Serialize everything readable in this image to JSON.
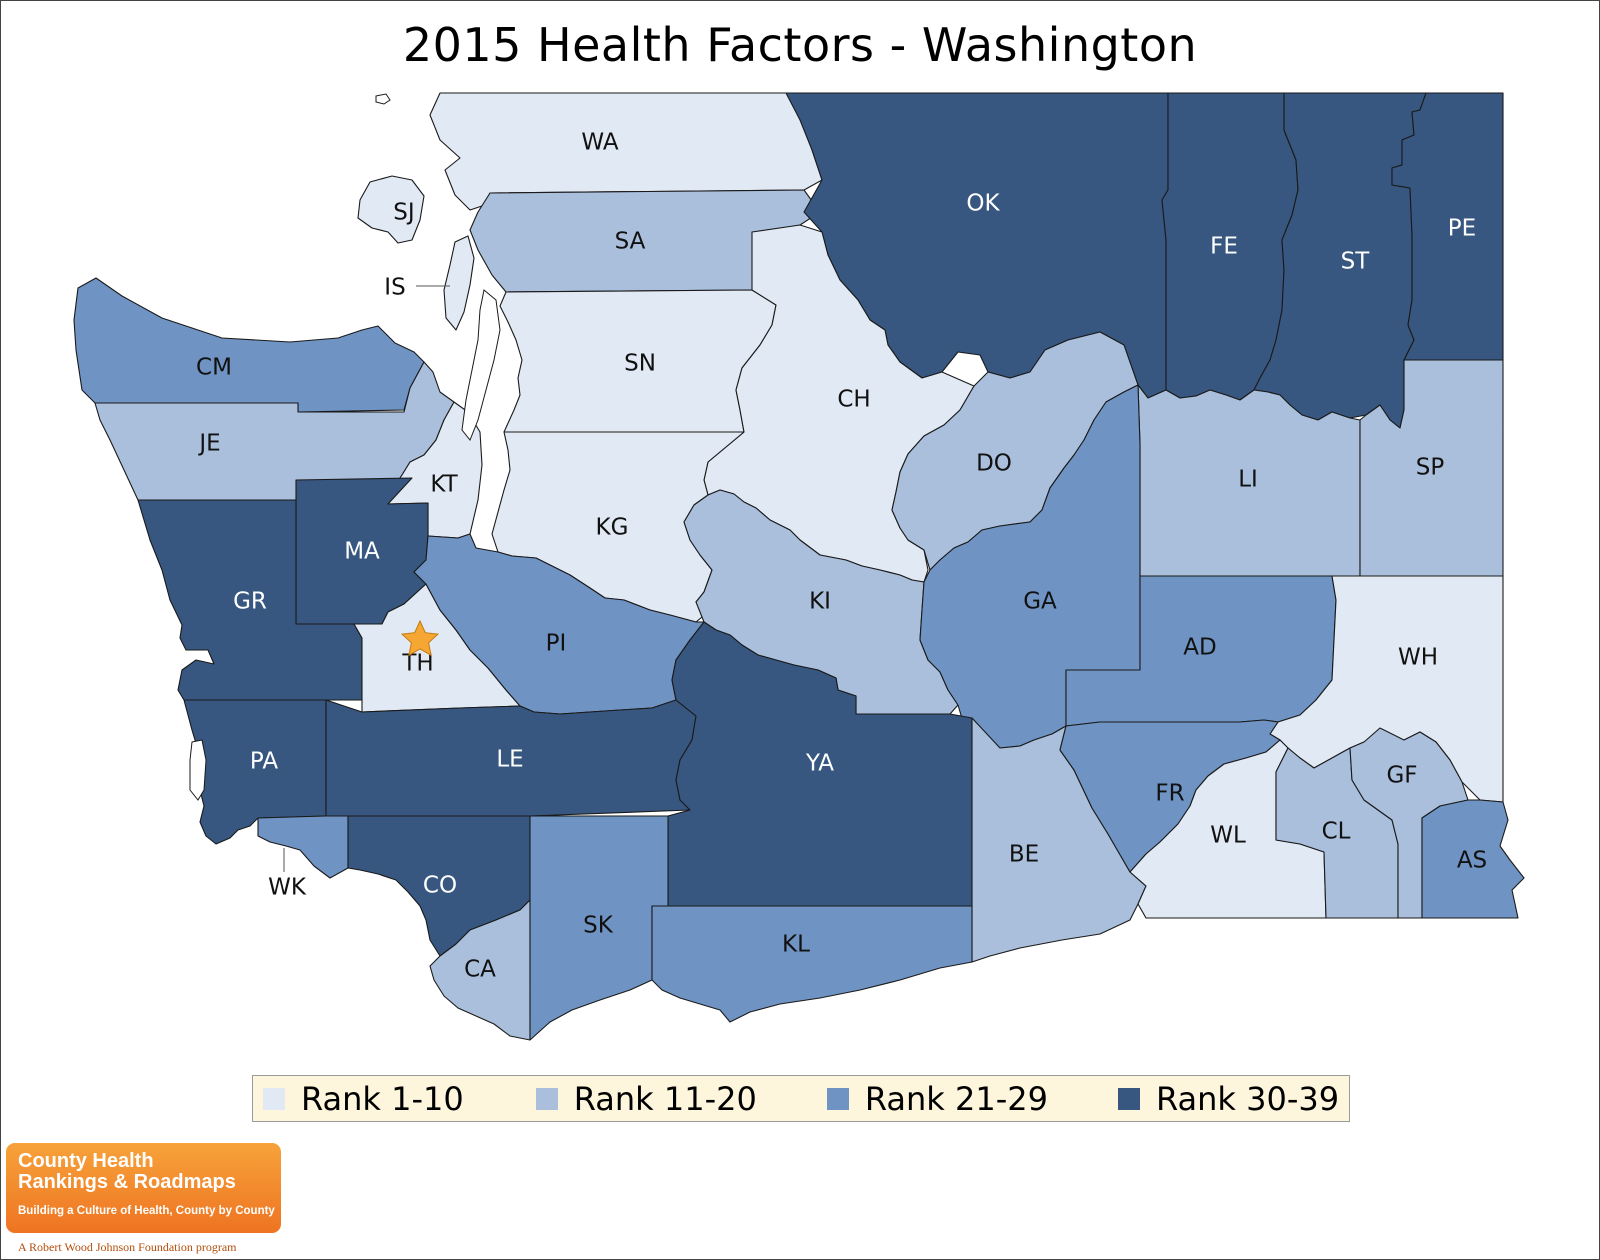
{
  "title": "2015 Health Factors - Washington",
  "colors": {
    "rank_1_10": "#e1e9f4",
    "rank_11_20": "#a9bfdc",
    "rank_21_29": "#6f94c4",
    "rank_30_39": "#375780",
    "legend_bg": "#fdf5dc",
    "star": "#f6a733"
  },
  "legend": [
    {
      "label": "Rank 1-10",
      "key": "rank_1_10"
    },
    {
      "label": "Rank 11-20",
      "key": "rank_11_20"
    },
    {
      "label": "Rank 21-29",
      "key": "rank_21_29"
    },
    {
      "label": "Rank 30-39",
      "key": "rank_30_39"
    }
  ],
  "counties": [
    {
      "code": "WA",
      "rank_group": "rank_1_10"
    },
    {
      "code": "SJ",
      "rank_group": "rank_1_10"
    },
    {
      "code": "IS",
      "rank_group": "rank_1_10"
    },
    {
      "code": "SA",
      "rank_group": "rank_11_20"
    },
    {
      "code": "OK",
      "rank_group": "rank_30_39"
    },
    {
      "code": "FE",
      "rank_group": "rank_30_39"
    },
    {
      "code": "ST",
      "rank_group": "rank_30_39"
    },
    {
      "code": "PE",
      "rank_group": "rank_30_39"
    },
    {
      "code": "CM",
      "rank_group": "rank_21_29"
    },
    {
      "code": "JE",
      "rank_group": "rank_11_20"
    },
    {
      "code": "SN",
      "rank_group": "rank_1_10"
    },
    {
      "code": "CH",
      "rank_group": "rank_1_10"
    },
    {
      "code": "DO",
      "rank_group": "rank_11_20"
    },
    {
      "code": "LI",
      "rank_group": "rank_11_20"
    },
    {
      "code": "SP",
      "rank_group": "rank_11_20"
    },
    {
      "code": "KT",
      "rank_group": "rank_1_10"
    },
    {
      "code": "KG",
      "rank_group": "rank_1_10"
    },
    {
      "code": "MA",
      "rank_group": "rank_30_39"
    },
    {
      "code": "GR",
      "rank_group": "rank_30_39"
    },
    {
      "code": "TH",
      "rank_group": "rank_1_10"
    },
    {
      "code": "PI",
      "rank_group": "rank_21_29"
    },
    {
      "code": "KI",
      "rank_group": "rank_11_20"
    },
    {
      "code": "GA",
      "rank_group": "rank_21_29"
    },
    {
      "code": "AD",
      "rank_group": "rank_21_29"
    },
    {
      "code": "WH",
      "rank_group": "rank_1_10"
    },
    {
      "code": "PA",
      "rank_group": "rank_30_39"
    },
    {
      "code": "LE",
      "rank_group": "rank_30_39"
    },
    {
      "code": "YA",
      "rank_group": "rank_30_39"
    },
    {
      "code": "FR",
      "rank_group": "rank_21_29"
    },
    {
      "code": "BE",
      "rank_group": "rank_11_20"
    },
    {
      "code": "WL",
      "rank_group": "rank_1_10"
    },
    {
      "code": "CL",
      "rank_group": "rank_11_20"
    },
    {
      "code": "GF",
      "rank_group": "rank_11_20"
    },
    {
      "code": "AS",
      "rank_group": "rank_21_29"
    },
    {
      "code": "WK",
      "rank_group": "rank_21_29"
    },
    {
      "code": "CO",
      "rank_group": "rank_30_39"
    },
    {
      "code": "CA",
      "rank_group": "rank_11_20"
    },
    {
      "code": "SK",
      "rank_group": "rank_21_29"
    },
    {
      "code": "KL",
      "rank_group": "rank_21_29"
    }
  ],
  "marker": {
    "county": "TH",
    "icon": "star-icon"
  },
  "logo": {
    "line1": "County Health",
    "line2": "Rankings & Roadmaps",
    "tagline": "Building a Culture of Health, County by County",
    "foundation": "A Robert Wood Johnson Foundation program"
  }
}
